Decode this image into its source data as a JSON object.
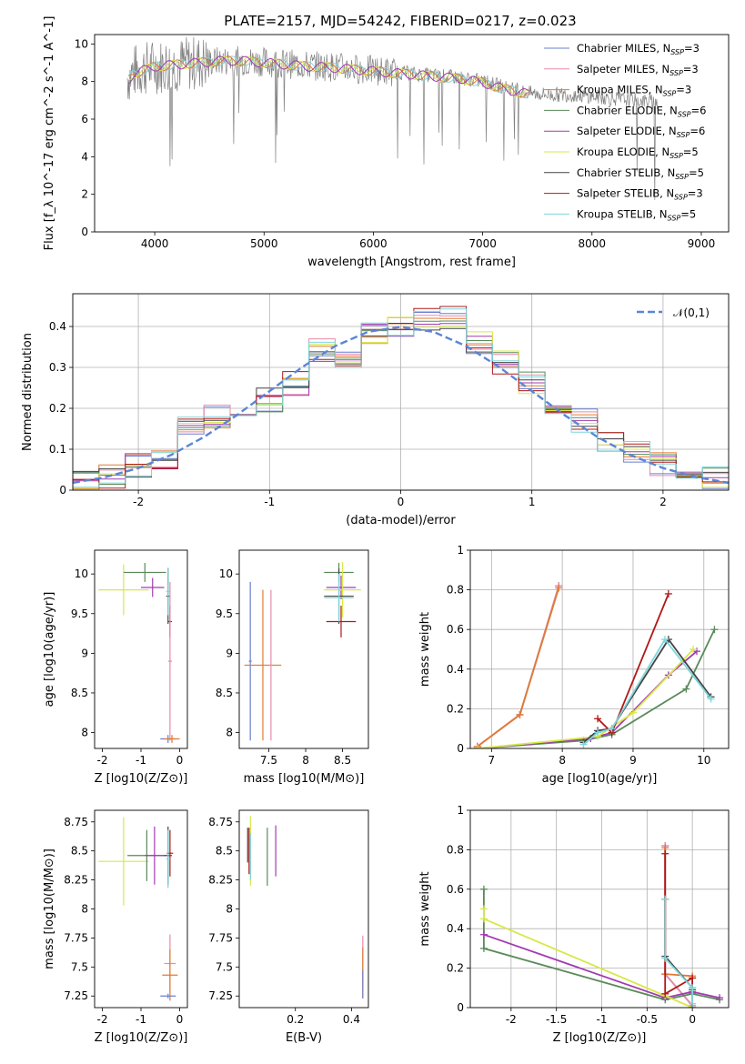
{
  "title": "PLATE=2157, MJD=54242, FIBERID=0217, z=0.023",
  "models": [
    {
      "name": "Chabrier MILES",
      "nssp": "3",
      "color": "#6b7fcf"
    },
    {
      "name": "Salpeter MILES",
      "nssp": "3",
      "color": "#e88aa8"
    },
    {
      "name": "Kroupa MILES",
      "nssp": "3",
      "color": "#e07a32"
    },
    {
      "name": "Chabrier ELODIE",
      "nssp": "6",
      "color": "#5a8a5a"
    },
    {
      "name": "Salpeter ELODIE",
      "nssp": "6",
      "color": "#a23bb0"
    },
    {
      "name": "Kroupa ELODIE",
      "nssp": "5",
      "color": "#d8e84a"
    },
    {
      "name": "Chabrier STELIB",
      "nssp": "5",
      "color": "#444444"
    },
    {
      "name": "Salpeter STELIB",
      "nssp": "3",
      "color": "#b01818"
    },
    {
      "name": "Kroupa STELIB",
      "nssp": "5",
      "color": "#7fd6dc"
    }
  ],
  "chart_data": [
    {
      "type": "line",
      "panel": "spectrum",
      "title": "PLATE=2157, MJD=54242, FIBERID=0217, z=0.023",
      "xlabel": "wavelength [Angstrom, rest frame]",
      "ylabel": "Flux [f_λ 10^-17 erg cm^-2 s^-1 A^-1]",
      "xlim": [
        3450,
        9250
      ],
      "ylim": [
        0,
        10.5
      ],
      "xticks": [
        4000,
        5000,
        6000,
        7000,
        8000,
        9000
      ],
      "yticks": [
        0,
        2,
        4,
        6,
        8,
        10
      ],
      "legend_position": "top-right",
      "data": {
        "x": [
          3750,
          3800,
          3900,
          4000,
          4200,
          4400,
          4600,
          4800,
          5000,
          5200,
          5400,
          5600,
          5800,
          6000,
          6200,
          6400,
          6600,
          6800,
          7000,
          7200,
          7400,
          7600,
          7800,
          8000,
          8200,
          8400,
          8600
        ],
        "y": [
          8.2,
          8.5,
          8.7,
          8.8,
          8.9,
          9.0,
          9.1,
          9.1,
          9.05,
          8.95,
          8.85,
          8.8,
          8.7,
          8.6,
          8.5,
          8.4,
          8.3,
          8.2,
          8.0,
          7.7,
          7.4,
          7.3,
          7.3,
          7.2,
          7.1,
          7.0,
          6.9
        ]
      },
      "model": {
        "x": [
          3750,
          3800,
          3900,
          4000,
          4200,
          4400,
          4600,
          4800,
          5000,
          5200,
          5400,
          5600,
          5800,
          6000,
          6200,
          6400,
          6600,
          6800,
          7000,
          7200,
          7400
        ],
        "y": [
          8.0,
          8.4,
          8.6,
          8.8,
          8.9,
          9.0,
          9.1,
          9.1,
          9.0,
          8.9,
          8.8,
          8.75,
          8.65,
          8.55,
          8.45,
          8.35,
          8.25,
          8.15,
          7.95,
          7.6,
          7.35
        ]
      }
    },
    {
      "type": "line",
      "panel": "residuals",
      "xlabel": "(data-model)/error",
      "ylabel": "Normed distribution",
      "xlim": [
        -2.5,
        2.5
      ],
      "ylim": [
        0,
        0.48
      ],
      "xticks": [
        -2,
        -1,
        0,
        1,
        2
      ],
      "yticks": [
        0.0,
        0.1,
        0.2,
        0.3,
        0.4
      ],
      "grid": true,
      "legend_position": "top-right",
      "reference": {
        "name": "𝒩(0,1)",
        "x": [
          -2.5,
          -2.25,
          -2.0,
          -1.75,
          -1.5,
          -1.25,
          -1.0,
          -0.75,
          -0.5,
          -0.25,
          0.0,
          0.25,
          0.5,
          0.75,
          1.0,
          1.25,
          1.5,
          1.75,
          2.0,
          2.25,
          2.5
        ],
        "y": [
          0.018,
          0.032,
          0.054,
          0.086,
          0.13,
          0.183,
          0.242,
          0.301,
          0.352,
          0.387,
          0.399,
          0.387,
          0.352,
          0.301,
          0.242,
          0.183,
          0.13,
          0.086,
          0.054,
          0.032,
          0.018
        ]
      },
      "histogram_edges": [
        -2.5,
        -2.3,
        -2.1,
        -1.9,
        -1.7,
        -1.5,
        -1.3,
        -1.1,
        -0.9,
        -0.7,
        -0.5,
        -0.3,
        -0.1,
        0.1,
        0.3,
        0.5,
        0.7,
        0.9,
        1.1,
        1.3,
        1.5,
        1.7,
        1.9,
        2.1,
        2.3,
        2.5
      ],
      "histogram_base": [
        0.028,
        0.032,
        0.06,
        0.075,
        0.16,
        0.18,
        0.2,
        0.22,
        0.26,
        0.34,
        0.32,
        0.38,
        0.4,
        0.42,
        0.42,
        0.36,
        0.31,
        0.26,
        0.2,
        0.17,
        0.12,
        0.09,
        0.065,
        0.045,
        0.028
      ]
    },
    {
      "type": "scatter",
      "panel": "age-vs-Z",
      "xlabel": "Z [log10(Z/Z⊙)]",
      "ylabel": "age [log10(age/yr)]",
      "xlim": [
        -2.2,
        0.2
      ],
      "ylim": [
        7.8,
        10.3
      ],
      "xticks": [
        -2,
        -1,
        0
      ],
      "yticks": [
        8.0,
        8.5,
        9.0,
        9.5,
        10.0
      ],
      "points": [
        {
          "model": 5,
          "x": -1.45,
          "xerr": 0.65,
          "y": 9.8,
          "yerr": 0.32
        },
        {
          "model": 3,
          "x": -0.9,
          "xerr": 0.55,
          "y": 10.02,
          "yerr": 0.12
        },
        {
          "model": 4,
          "x": -0.7,
          "xerr": 0.3,
          "y": 9.83,
          "yerr": 0.12
        },
        {
          "model": 6,
          "x": -0.3,
          "xerr": 0.05,
          "y": 9.72,
          "yerr": 0.35
        },
        {
          "model": 7,
          "x": -0.25,
          "xerr": 0.05,
          "y": 9.4,
          "yerr": 0.2
        },
        {
          "model": 8,
          "x": -0.3,
          "xerr": 0.05,
          "y": 9.78,
          "yerr": 0.3
        },
        {
          "model": 0,
          "x": -0.3,
          "xerr": 0.2,
          "y": 7.92,
          "yerr": 0.05
        },
        {
          "model": 1,
          "x": -0.25,
          "xerr": 0.05,
          "y": 8.9,
          "yerr": 1.0
        },
        {
          "model": 2,
          "x": -0.2,
          "xerr": 0.2,
          "y": 7.92,
          "yerr": 0.05
        }
      ]
    },
    {
      "type": "scatter",
      "panel": "age-vs-mass",
      "xlabel": "mass [log10(M/M⊙)]",
      "ylabel": "",
      "xlim": [
        7.1,
        8.85
      ],
      "ylim": [
        7.8,
        10.3
      ],
      "xticks": [
        7.5,
        8.0,
        8.5
      ],
      "yticks": [
        8.0,
        8.5,
        9.0,
        9.5,
        10.0
      ],
      "points": [
        {
          "model": 0,
          "x": 7.25,
          "xerr": 0.02,
          "y": 8.9,
          "yerr": 1.0
        },
        {
          "model": 2,
          "x": 7.42,
          "xerr": 0.25,
          "y": 8.85,
          "yerr": 0.95
        },
        {
          "model": 1,
          "x": 7.53,
          "xerr": 0.02,
          "y": 8.85,
          "yerr": 0.95
        },
        {
          "model": 3,
          "x": 8.45,
          "xerr": 0.2,
          "y": 10.02,
          "yerr": 0.12
        },
        {
          "model": 4,
          "x": 8.48,
          "xerr": 0.2,
          "y": 9.83,
          "yerr": 0.15
        },
        {
          "model": 5,
          "x": 8.5,
          "xerr": 0.25,
          "y": 9.8,
          "yerr": 0.35
        },
        {
          "model": 6,
          "x": 8.45,
          "xerr": 0.2,
          "y": 9.72,
          "yerr": 0.35
        },
        {
          "model": 7,
          "x": 8.48,
          "xerr": 0.2,
          "y": 9.4,
          "yerr": 0.2
        },
        {
          "model": 8,
          "x": 8.45,
          "xerr": 0.2,
          "y": 9.7,
          "yerr": 0.3
        }
      ]
    },
    {
      "type": "line",
      "panel": "mass-weight-vs-age",
      "xlabel": "age [log10(age/yr)]",
      "ylabel": "mass weight",
      "xlim": [
        6.7,
        10.35
      ],
      "ylim": [
        0,
        1.0
      ],
      "xticks": [
        7,
        8,
        9,
        10
      ],
      "yticks": [
        0.0,
        0.2,
        0.4,
        0.6,
        0.8,
        1.0
      ],
      "grid": true,
      "series": [
        {
          "model": 0,
          "x": [
            6.8,
            7.4,
            7.95
          ],
          "y": [
            0.01,
            0.17,
            0.82
          ]
        },
        {
          "model": 1,
          "x": [
            6.8,
            7.4,
            7.95
          ],
          "y": [
            0.01,
            0.17,
            0.82
          ]
        },
        {
          "model": 2,
          "x": [
            6.8,
            7.4,
            7.95
          ],
          "y": [
            0.01,
            0.17,
            0.81
          ]
        },
        {
          "model": 3,
          "x": [
            6.8,
            8.3,
            8.7,
            9.75,
            10.15
          ],
          "y": [
            0.0,
            0.04,
            0.07,
            0.3,
            0.6
          ]
        },
        {
          "model": 4,
          "x": [
            6.8,
            8.4,
            8.7,
            9.5,
            9.9
          ],
          "y": [
            0.0,
            0.05,
            0.08,
            0.37,
            0.49
          ]
        },
        {
          "model": 5,
          "x": [
            6.8,
            8.5,
            9.0,
            9.85
          ],
          "y": [
            0.0,
            0.06,
            0.18,
            0.5
          ]
        },
        {
          "model": 6,
          "x": [
            8.3,
            8.5,
            8.7,
            9.5,
            10.1
          ],
          "y": [
            0.03,
            0.09,
            0.1,
            0.55,
            0.26
          ]
        },
        {
          "model": 7,
          "x": [
            8.5,
            8.7,
            9.5
          ],
          "y": [
            0.15,
            0.08,
            0.78
          ]
        },
        {
          "model": 8,
          "x": [
            8.3,
            8.5,
            8.7,
            9.45,
            10.1
          ],
          "y": [
            0.02,
            0.08,
            0.1,
            0.55,
            0.25
          ]
        }
      ]
    },
    {
      "type": "scatter",
      "panel": "mass-vs-Z",
      "xlabel": "Z [log10(Z/Z⊙)]",
      "ylabel": "mass [log10(M/M⊙)]",
      "xlim": [
        -2.2,
        0.2
      ],
      "ylim": [
        7.15,
        8.85
      ],
      "xticks": [
        -2,
        -1,
        0
      ],
      "yticks": [
        7.25,
        7.5,
        7.75,
        8.0,
        8.25,
        8.5,
        8.75
      ],
      "points": [
        {
          "model": 5,
          "x": -1.45,
          "xerr": 0.65,
          "y": 8.41,
          "yerr": 0.38
        },
        {
          "model": 3,
          "x": -0.85,
          "xerr": 0.5,
          "y": 8.46,
          "yerr": 0.22
        },
        {
          "model": 4,
          "x": -0.65,
          "xerr": 0.25,
          "y": 8.46,
          "yerr": 0.25
        },
        {
          "model": 6,
          "x": -0.3,
          "xerr": 0.1,
          "y": 8.46,
          "yerr": 0.25
        },
        {
          "model": 7,
          "x": -0.25,
          "xerr": 0.08,
          "y": 8.48,
          "yerr": 0.2
        },
        {
          "model": 8,
          "x": -0.3,
          "xerr": 0.05,
          "y": 8.43,
          "yerr": 0.25
        },
        {
          "model": 1,
          "x": -0.25,
          "xerr": 0.15,
          "y": 7.53,
          "yerr": 0.25
        },
        {
          "model": 2,
          "x": -0.25,
          "xerr": 0.2,
          "y": 7.43,
          "yerr": 0.22
        },
        {
          "model": 0,
          "x": -0.3,
          "xerr": 0.2,
          "y": 7.25,
          "yerr": 0.02
        }
      ]
    },
    {
      "type": "scatter",
      "panel": "mass-vs-EBV",
      "xlabel": "E(B-V)",
      "ylabel": "",
      "xlim": [
        0.0,
        0.46
      ],
      "ylim": [
        7.15,
        8.85
      ],
      "xticks": [
        0.2,
        0.4
      ],
      "yticks": [
        7.25,
        7.5,
        7.75,
        8.0,
        8.25,
        8.5,
        8.75
      ],
      "points": [
        {
          "model": 6,
          "x": 0.03,
          "xerr": 0,
          "y": 8.55,
          "yerr": 0.15
        },
        {
          "model": 7,
          "x": 0.035,
          "xerr": 0,
          "y": 8.5,
          "yerr": 0.2
        },
        {
          "model": 5,
          "x": 0.04,
          "xerr": 0,
          "y": 8.5,
          "yerr": 0.3
        },
        {
          "model": 8,
          "x": 0.04,
          "xerr": 0,
          "y": 8.45,
          "yerr": 0.2
        },
        {
          "model": 3,
          "x": 0.1,
          "xerr": 0,
          "y": 8.45,
          "yerr": 0.25
        },
        {
          "model": 4,
          "x": 0.13,
          "xerr": 0,
          "y": 8.5,
          "yerr": 0.22
        },
        {
          "model": 1,
          "x": 0.44,
          "xerr": 0,
          "y": 7.55,
          "yerr": 0.22
        },
        {
          "model": 2,
          "x": 0.44,
          "xerr": 0,
          "y": 7.45,
          "yerr": 0.22
        },
        {
          "model": 0,
          "x": 0.44,
          "xerr": 0,
          "y": 7.35,
          "yerr": 0.12
        }
      ]
    },
    {
      "type": "line",
      "panel": "mass-weight-vs-Z",
      "xlabel": "Z [log10(Z/Z⊙)]",
      "ylabel": "mass weight",
      "xlim": [
        -2.45,
        0.4
      ],
      "ylim": [
        0,
        1.0
      ],
      "xticks": [
        -2.0,
        -1.5,
        -1.0,
        -0.5,
        0.0
      ],
      "yticks": [
        0.0,
        0.2,
        0.4,
        0.6,
        0.8,
        1.0
      ],
      "grid": true,
      "series": [
        {
          "model": 0,
          "x": [
            -0.3,
            -0.3,
            0.0
          ],
          "y": [
            0.82,
            0.17,
            0.01
          ]
        },
        {
          "model": 1,
          "x": [
            -0.3,
            -0.3,
            0.0
          ],
          "y": [
            0.82,
            0.17,
            0.01
          ]
        },
        {
          "model": 2,
          "x": [
            -0.3,
            -0.3,
            0.0
          ],
          "y": [
            0.81,
            0.17,
            0.16
          ]
        },
        {
          "model": 3,
          "x": [
            -2.3,
            -2.3,
            -0.3,
            0.0,
            0.3
          ],
          "y": [
            0.6,
            0.3,
            0.04,
            0.07,
            0.04
          ]
        },
        {
          "model": 4,
          "x": [
            -2.3,
            -0.3,
            0.0,
            0.3
          ],
          "y": [
            0.37,
            0.05,
            0.08,
            0.05
          ]
        },
        {
          "model": 5,
          "x": [
            -2.3,
            -2.3,
            -0.3,
            0.0
          ],
          "y": [
            0.5,
            0.45,
            0.06,
            0.0
          ]
        },
        {
          "model": 6,
          "x": [
            -0.3,
            -0.3,
            0.0,
            0.0
          ],
          "y": [
            0.55,
            0.26,
            0.1,
            0.09
          ]
        },
        {
          "model": 7,
          "x": [
            -0.3,
            -0.3,
            0.0,
            0.0
          ],
          "y": [
            0.78,
            0.07,
            0.15,
            0.0
          ]
        },
        {
          "model": 8,
          "x": [
            -0.3,
            -0.3,
            0.0,
            0.0
          ],
          "y": [
            0.55,
            0.25,
            0.1,
            0.02
          ]
        }
      ]
    }
  ]
}
